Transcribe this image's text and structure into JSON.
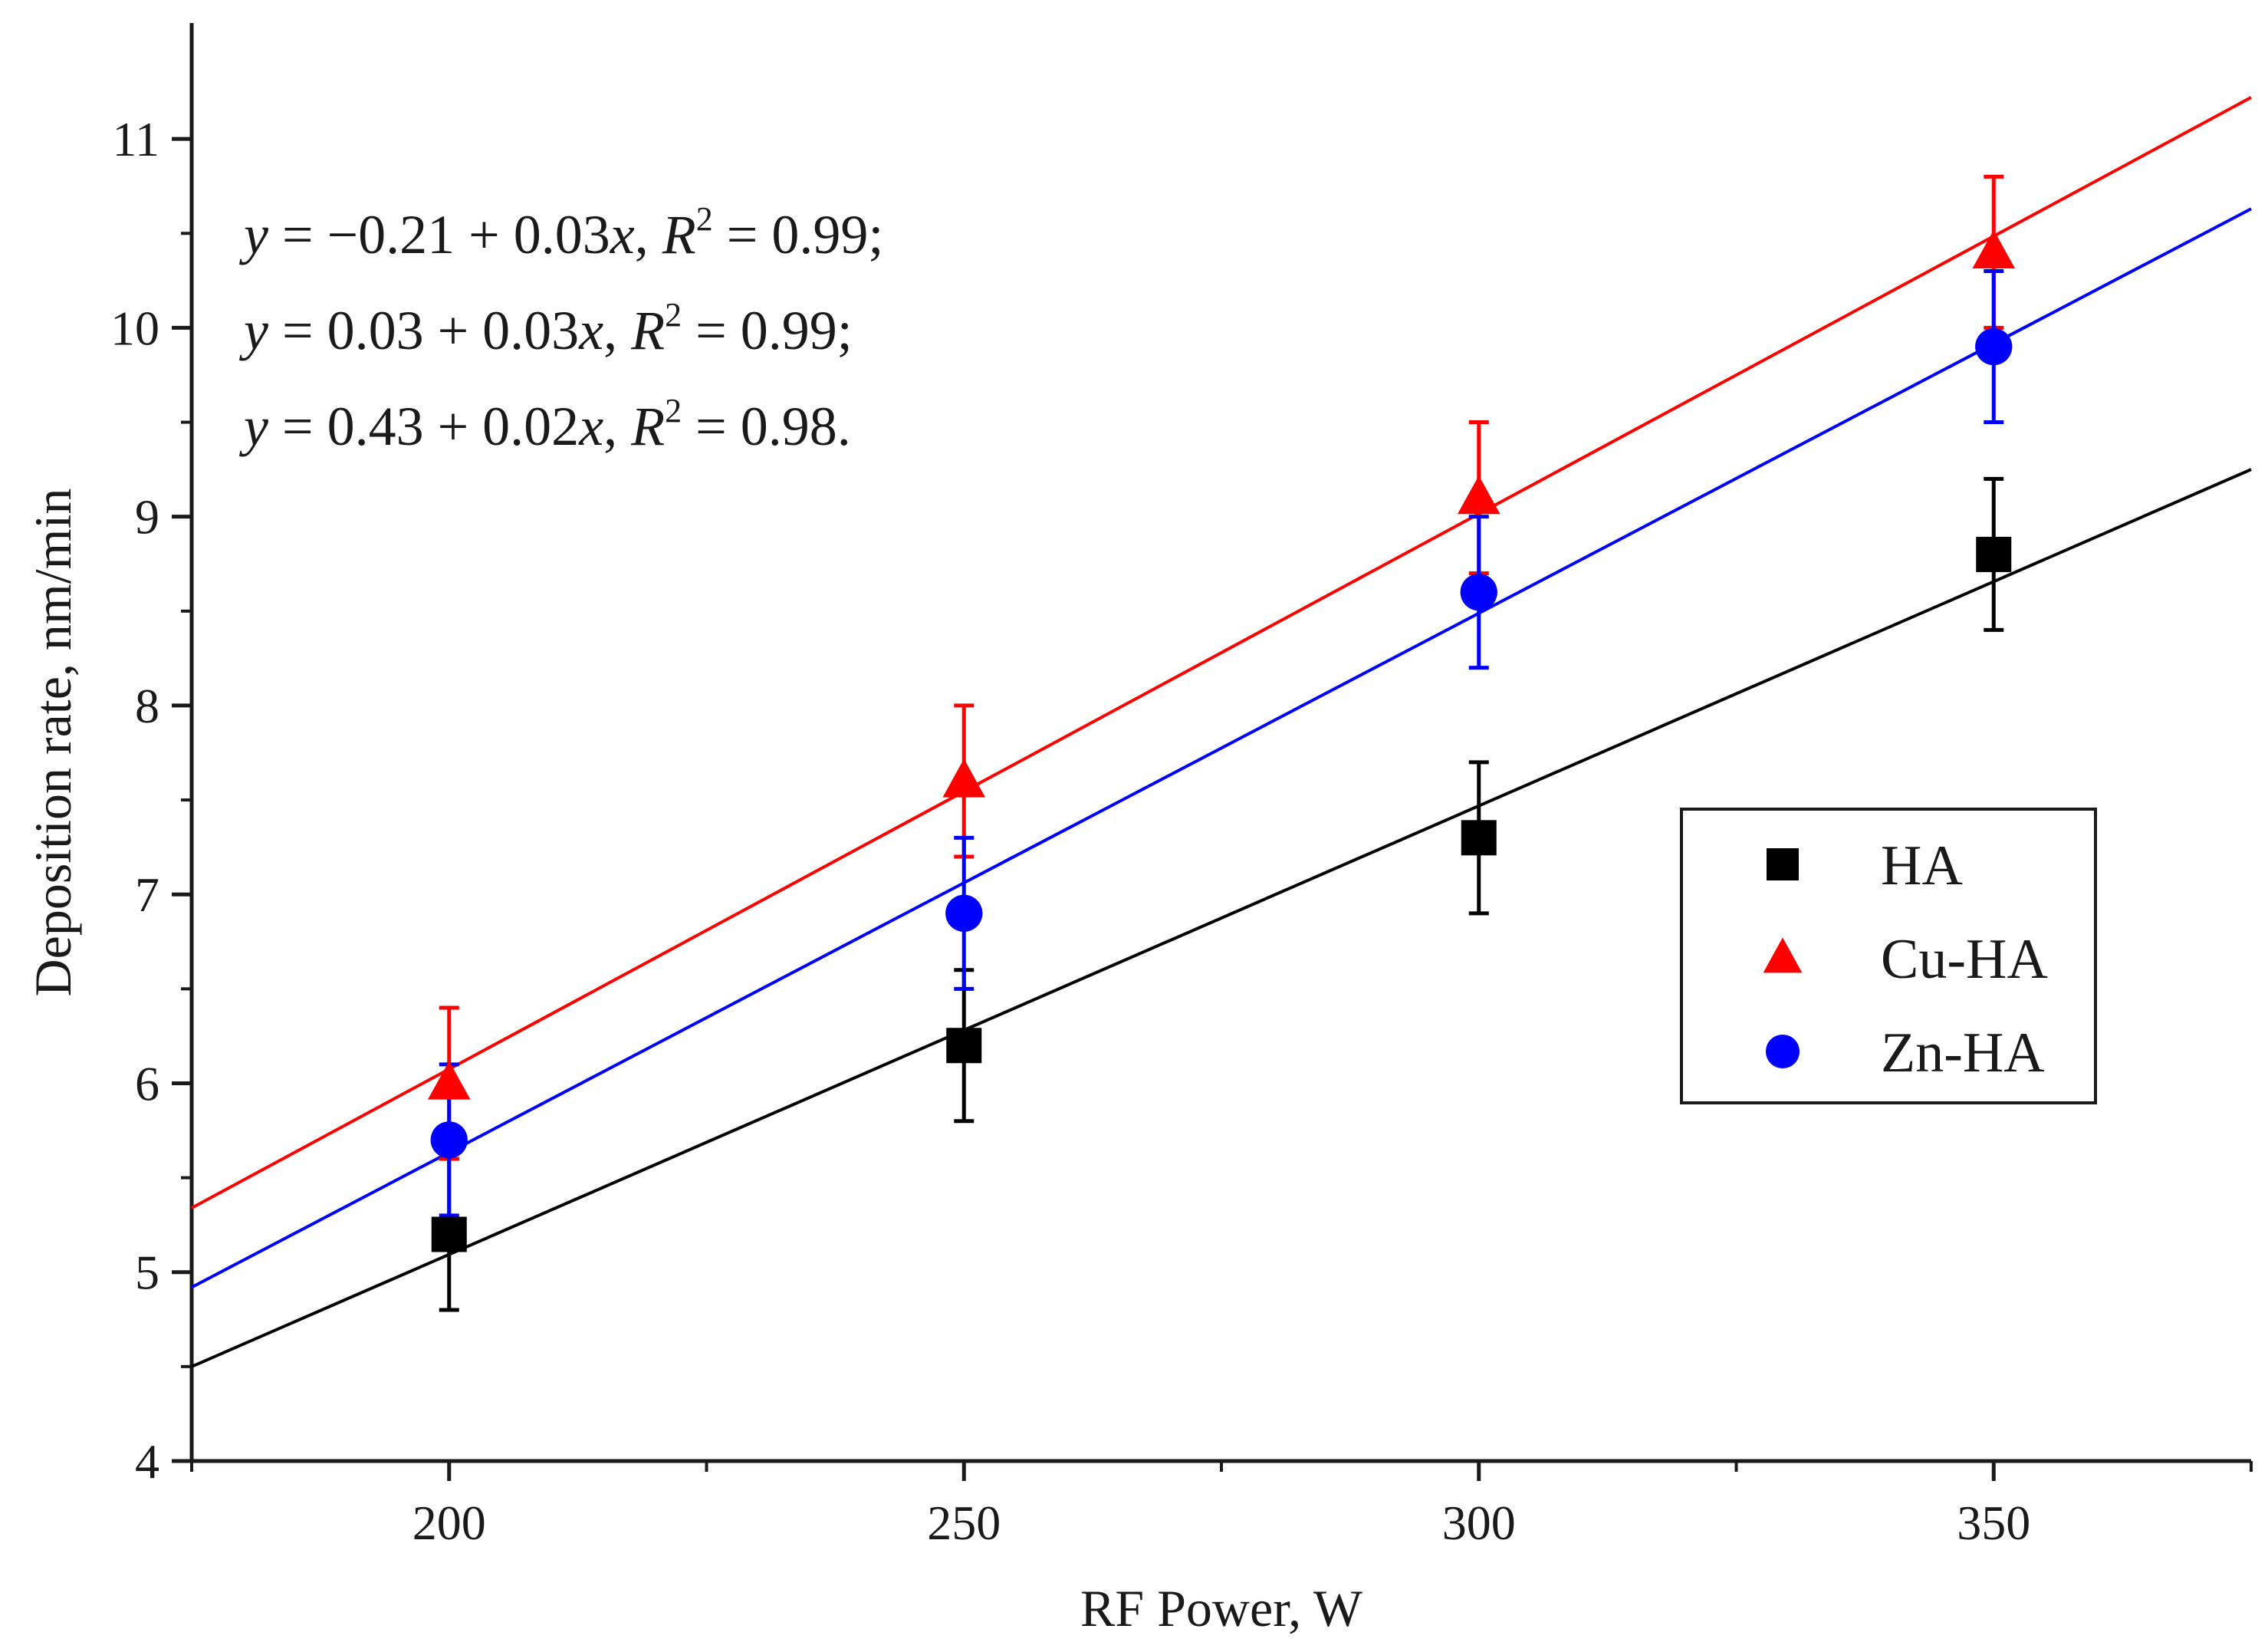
{
  "chart_data": {
    "type": "scatter",
    "title": "",
    "xlabel": "RF Power, W",
    "ylabel": "Deposition rate, nm/min",
    "xlim": [
      175,
      375
    ],
    "ylim": [
      4,
      11.5
    ],
    "x_ticks": [
      200,
      250,
      300,
      350
    ],
    "y_ticks": [
      4,
      5,
      6,
      7,
      8,
      9,
      10,
      11
    ],
    "x_tick_labels": [
      "200",
      "250",
      "300",
      "350"
    ],
    "y_tick_labels": [
      "4",
      "5",
      "6",
      "7",
      "8",
      "9",
      "10",
      "11"
    ],
    "grid": false,
    "legend_position": "right",
    "series": [
      {
        "name": "HA",
        "marker": "square",
        "color": "#000000",
        "x": [
          200,
          250,
          300,
          350
        ],
        "values": [
          5.2,
          6.2,
          7.3,
          8.8
        ],
        "errors": [
          0.4,
          0.4,
          0.4,
          0.4
        ],
        "fit": {
          "x": [
            175,
            375
          ],
          "y": [
            4.5,
            9.25
          ]
        }
      },
      {
        "name": "Cu-HA",
        "marker": "triangle",
        "color": "#ff0000",
        "x": [
          200,
          250,
          300,
          350
        ],
        "values": [
          6.0,
          7.6,
          9.1,
          10.4
        ],
        "errors": [
          0.4,
          0.4,
          0.4,
          0.4
        ],
        "fit": {
          "x": [
            175,
            375
          ],
          "y": [
            5.34,
            11.22
          ]
        }
      },
      {
        "name": "Zn-HA",
        "marker": "circle",
        "color": "#0000ff",
        "x": [
          200,
          250,
          300,
          350
        ],
        "values": [
          5.7,
          6.9,
          8.6,
          9.9
        ],
        "errors": [
          0.4,
          0.4,
          0.4,
          0.4
        ],
        "fit": {
          "x": [
            175,
            375
          ],
          "y": [
            4.92,
            10.63
          ]
        }
      }
    ],
    "annotations": [
      {
        "y": "y",
        "eq": " = −0.21 + 0.03",
        "x": "x",
        "sep": ", ",
        "R": "R",
        "sup": "2",
        "tail": " = 0.99;"
      },
      {
        "y": "y",
        "eq": " = 0.03 + 0.03",
        "x": "x",
        "sep": ", ",
        "R": "R",
        "sup": "2",
        "tail": " = 0.99;"
      },
      {
        "y": "y",
        "eq": " = 0.43 + 0.02",
        "x": "x",
        "sep": ", ",
        "R": "R",
        "sup": "2",
        "tail": " = 0.98."
      }
    ]
  }
}
